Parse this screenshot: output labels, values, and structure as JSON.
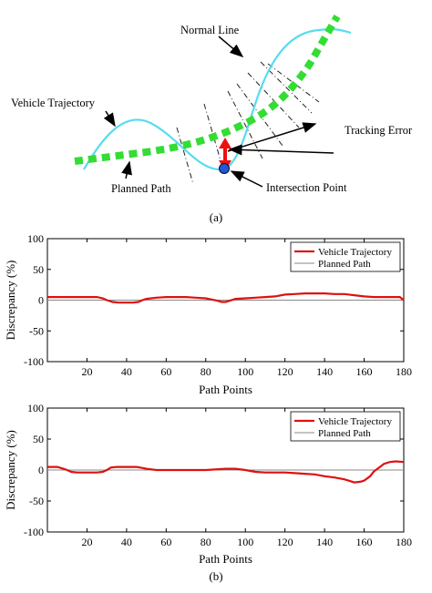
{
  "diagram": {
    "labels": {
      "normal_line": "Normal Line",
      "vehicle_trajectory": "Vehicle Trajectory",
      "tracking_error": "Tracking Error",
      "planned_path": "Planned Path",
      "intersection_point": "Intersection Point"
    },
    "caption": "(a)",
    "colors": {
      "planned_path": "#33dd33",
      "trajectory": "#55ddee",
      "error_arrow": "#ee1111",
      "point": "#2255dd"
    }
  },
  "chart_data": [
    {
      "type": "line",
      "xlabel": "Path Points",
      "ylabel": "Discrepancy (%)",
      "xlim": [
        0,
        180
      ],
      "ylim": [
        -100,
        100
      ],
      "xticks": [
        20,
        40,
        60,
        80,
        100,
        120,
        140,
        160,
        180
      ],
      "yticks": [
        100,
        50,
        0,
        -50,
        -100
      ],
      "legend_position": "top-right",
      "series": [
        {
          "name": "Vehicle Trajectory",
          "color": "#dd1111",
          "x": [
            0,
            5,
            10,
            15,
            20,
            25,
            28,
            30,
            33,
            36,
            40,
            43,
            46,
            48,
            50,
            55,
            60,
            65,
            70,
            75,
            80,
            83,
            86,
            88,
            90,
            92,
            95,
            100,
            105,
            110,
            115,
            120,
            125,
            130,
            135,
            140,
            145,
            150,
            155,
            160,
            165,
            170,
            175,
            178,
            180
          ],
          "y": [
            5,
            5,
            5,
            5,
            5,
            5,
            3,
            0,
            -3,
            -4,
            -4,
            -4,
            -3,
            0,
            2,
            4,
            5,
            5,
            5,
            4,
            3,
            1,
            -1,
            -3,
            -3,
            -1,
            2,
            3,
            4,
            5,
            6,
            9,
            10,
            11,
            11,
            11,
            10,
            10,
            8,
            6,
            5,
            5,
            5,
            5,
            0
          ]
        },
        {
          "name": "Planned Path",
          "color": "#888888",
          "x": [
            0,
            180
          ],
          "y": [
            0,
            0
          ]
        }
      ]
    },
    {
      "type": "line",
      "xlabel": "Path Points",
      "ylabel": "Discrepancy (%)",
      "xlim": [
        0,
        180
      ],
      "ylim": [
        -100,
        100
      ],
      "xticks": [
        20,
        40,
        60,
        80,
        100,
        120,
        140,
        160,
        180
      ],
      "yticks": [
        100,
        50,
        0,
        -50,
        -100
      ],
      "legend_position": "top-right",
      "series": [
        {
          "name": "Vehicle Trajectory",
          "color": "#dd1111",
          "x": [
            0,
            3,
            5,
            8,
            10,
            12,
            15,
            20,
            25,
            28,
            30,
            32,
            35,
            40,
            45,
            50,
            55,
            60,
            70,
            80,
            90,
            95,
            100,
            105,
            110,
            115,
            120,
            125,
            130,
            135,
            140,
            145,
            150,
            153,
            155,
            158,
            160,
            163,
            165,
            168,
            170,
            173,
            176,
            180
          ],
          "y": [
            5,
            5,
            5,
            2,
            0,
            -3,
            -4,
            -4,
            -4,
            -3,
            0,
            4,
            5,
            5,
            5,
            2,
            0,
            0,
            0,
            0,
            2,
            2,
            0,
            -3,
            -4,
            -4,
            -4,
            -5,
            -6,
            -7,
            -10,
            -12,
            -15,
            -18,
            -20,
            -19,
            -17,
            -10,
            -2,
            5,
            10,
            13,
            14,
            13
          ]
        },
        {
          "name": "Planned Path",
          "color": "#888888",
          "x": [
            0,
            180
          ],
          "y": [
            0,
            0
          ]
        }
      ]
    }
  ],
  "caption_b": "(b)"
}
